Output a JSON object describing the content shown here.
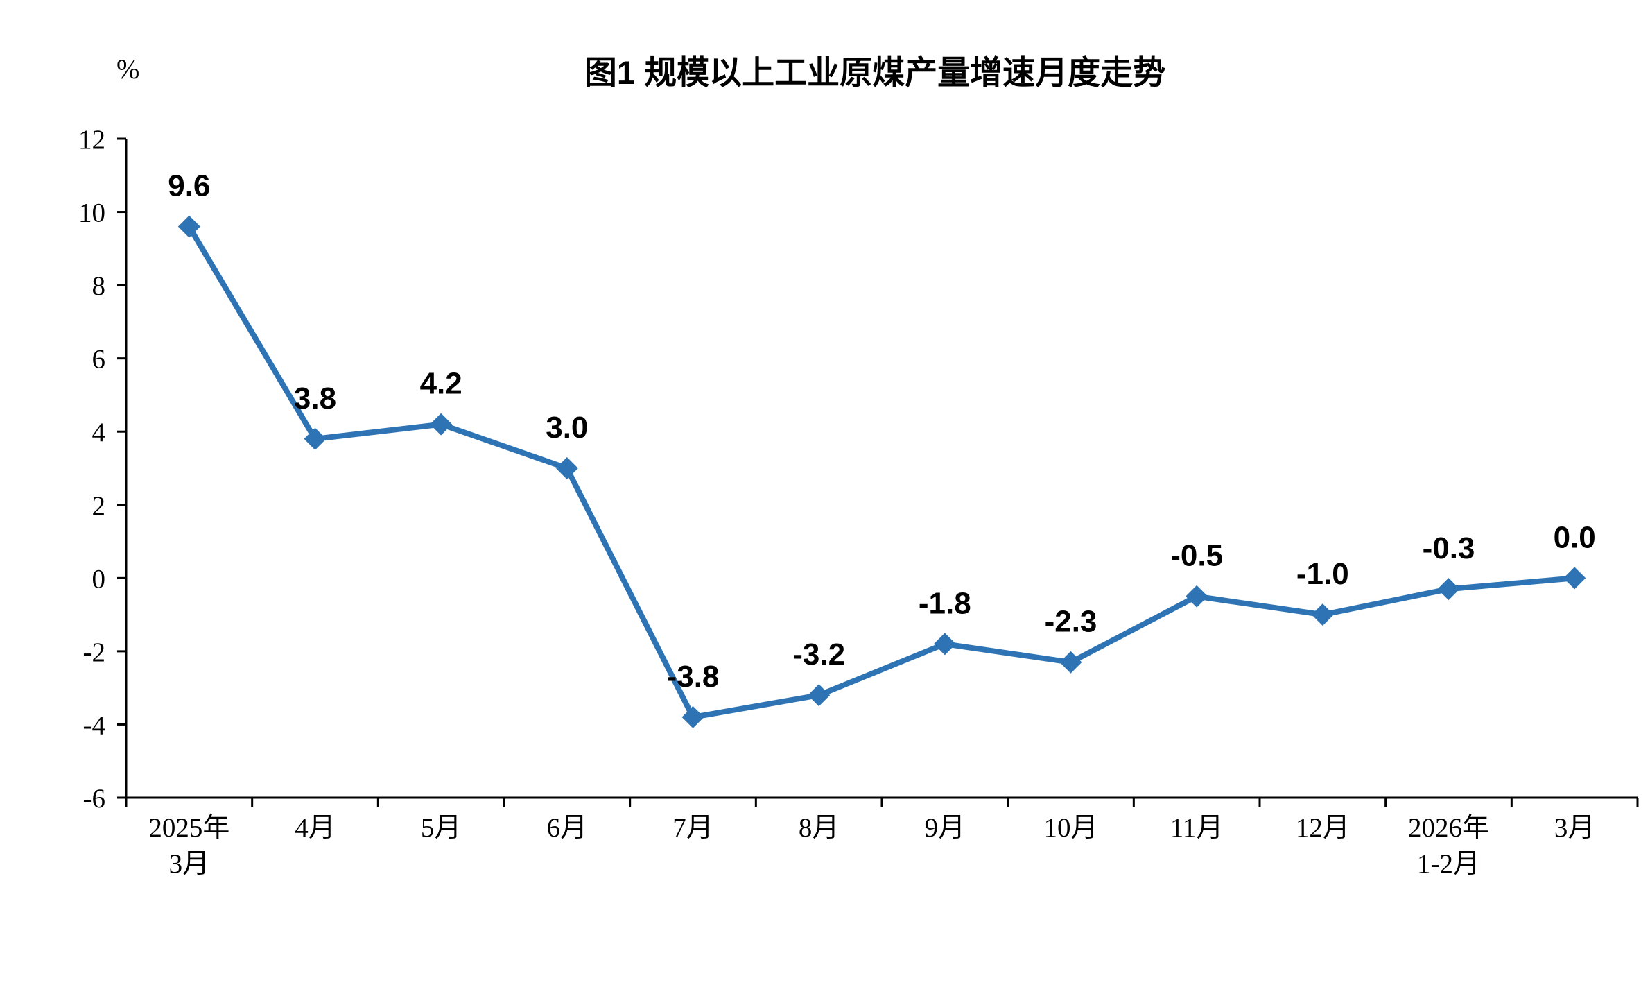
{
  "chart_data": {
    "type": "line",
    "title": "图1 规模以上工业原煤产量增速月度走势",
    "ylabel": "%",
    "xlabel": "",
    "categories": [
      [
        "2025年",
        "3月"
      ],
      [
        "4月"
      ],
      [
        "5月"
      ],
      [
        "6月"
      ],
      [
        "7月"
      ],
      [
        "8月"
      ],
      [
        "9月"
      ],
      [
        "10月"
      ],
      [
        "11月"
      ],
      [
        "12月"
      ],
      [
        "2026年",
        "1-2月"
      ],
      [
        "3月"
      ]
    ],
    "values": [
      9.6,
      3.8,
      4.2,
      3.0,
      -3.8,
      -3.2,
      -1.8,
      -2.3,
      -0.5,
      -1.0,
      -0.3,
      0.0
    ],
    "data_labels": [
      "9.6",
      "3.8",
      "4.2",
      "3.0",
      "-3.8",
      "-3.2",
      "-1.8",
      "-2.3",
      "-0.5",
      "-1.0",
      "-0.3",
      "0.0"
    ],
    "ylim": [
      -6,
      12
    ],
    "yticks": [
      12,
      10,
      8,
      6,
      4,
      2,
      0,
      -2,
      -4,
      -6
    ],
    "grid": false,
    "legend": false,
    "line_color": "#2E74B5",
    "marker": "diamond",
    "axis_color": "#000000",
    "background_color": "#FFFFFF"
  }
}
